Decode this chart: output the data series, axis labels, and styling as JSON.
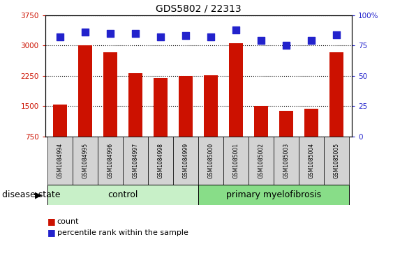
{
  "title": "GDS5802 / 22313",
  "samples": [
    "GSM1084994",
    "GSM1084995",
    "GSM1084996",
    "GSM1084997",
    "GSM1084998",
    "GSM1084999",
    "GSM1085000",
    "GSM1085001",
    "GSM1085002",
    "GSM1085003",
    "GSM1085004",
    "GSM1085005"
  ],
  "counts": [
    1550,
    3005,
    2840,
    2310,
    2195,
    2250,
    2265,
    3060,
    1510,
    1385,
    1435,
    2840
  ],
  "percentiles": [
    82,
    86,
    85,
    85,
    82,
    83,
    82,
    88,
    79,
    75,
    79,
    84
  ],
  "bar_color": "#cc1100",
  "dot_color": "#2222cc",
  "ylim_left": [
    750,
    3750
  ],
  "ylim_right": [
    0,
    100
  ],
  "yticks_left": [
    750,
    1500,
    2250,
    3000,
    3750
  ],
  "yticks_right": [
    0,
    25,
    50,
    75,
    100
  ],
  "n_control": 6,
  "n_myelofibrosis": 6,
  "disease_state_label": "disease state",
  "bar_width": 0.55,
  "dot_size": 45,
  "title_fontsize": 10,
  "tick_fontsize": 7.5,
  "sample_fontsize": 5.5,
  "group_fontsize": 9,
  "legend_fontsize": 8
}
